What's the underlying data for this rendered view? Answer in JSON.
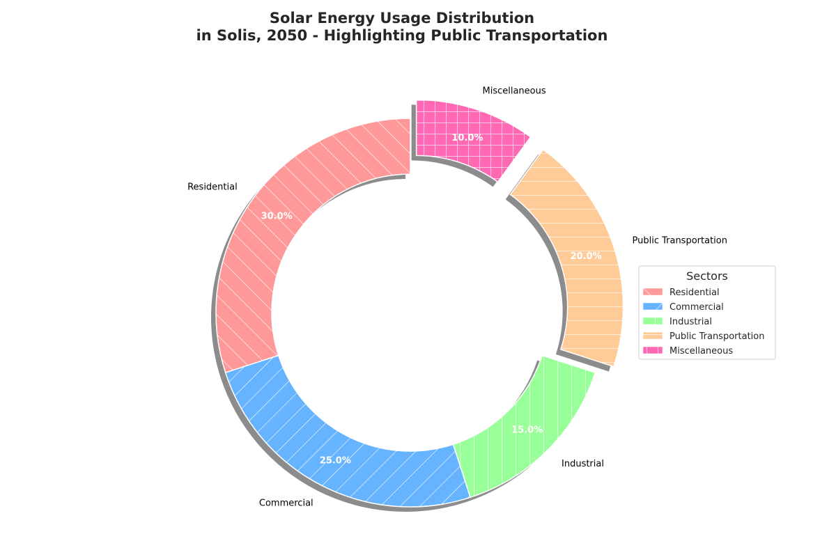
{
  "chart_data": {
    "type": "pie",
    "style": "donut",
    "title_lines": [
      "Solar Energy Usage Distribution",
      "in Solis, 2050 - Highlighting Public Transportation"
    ],
    "categories": [
      "Residential",
      "Commercial",
      "Industrial",
      "Public Transportation",
      "Miscellaneous"
    ],
    "values": [
      30.0,
      25.0,
      15.0,
      20.0,
      10.0
    ],
    "value_labels": [
      "30.0%",
      "25.0%",
      "15.0%",
      "20.0%",
      "10.0%"
    ],
    "colors": [
      "#FF9999",
      "#66B3FF",
      "#99FF99",
      "#FFCC99",
      "#FF69B4"
    ],
    "hatches": [
      "forward-diagonal",
      "back-diagonal",
      "vertical",
      "horizontal",
      "grid"
    ],
    "exploded": [
      false,
      false,
      false,
      true,
      true
    ],
    "start_angle_deg": 90,
    "direction": "counterclockwise",
    "shadow": true,
    "legend": {
      "title": "Sectors",
      "placement": "right"
    }
  }
}
